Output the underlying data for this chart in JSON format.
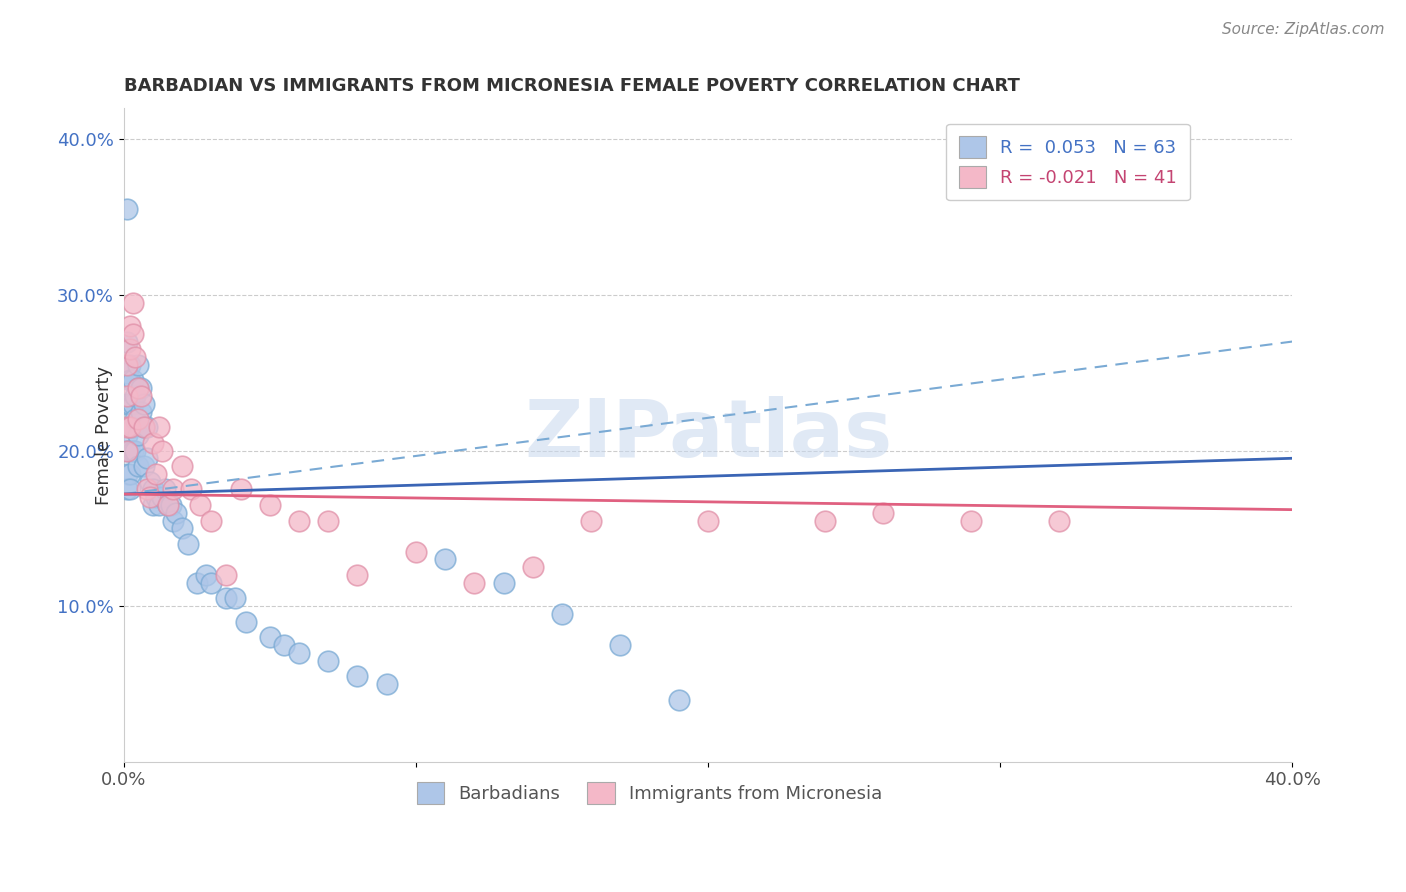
{
  "title": "BARBADIAN VS IMMIGRANTS FROM MICRONESIA FEMALE POVERTY CORRELATION CHART",
  "source": "Source: ZipAtlas.com",
  "ylabel": "Female Poverty",
  "xlim": [
    0.0,
    0.4
  ],
  "ylim": [
    0.0,
    0.42
  ],
  "blue_color": "#aec6e8",
  "pink_color": "#f4b8c8",
  "line_blue_solid_start": 0.172,
  "line_blue_solid_end": 0.195,
  "line_blue_dashed_start": 0.172,
  "line_blue_dashed_end": 0.27,
  "line_pink_start": 0.172,
  "line_pink_end": 0.162,
  "blue_scatter_x": [
    0.001,
    0.001,
    0.001,
    0.001,
    0.001,
    0.001,
    0.001,
    0.001,
    0.002,
    0.002,
    0.002,
    0.002,
    0.002,
    0.002,
    0.002,
    0.003,
    0.003,
    0.003,
    0.003,
    0.004,
    0.004,
    0.004,
    0.005,
    0.005,
    0.005,
    0.005,
    0.006,
    0.006,
    0.007,
    0.007,
    0.007,
    0.008,
    0.008,
    0.009,
    0.01,
    0.01,
    0.011,
    0.012,
    0.013,
    0.014,
    0.015,
    0.016,
    0.017,
    0.018,
    0.02,
    0.022,
    0.025,
    0.028,
    0.03,
    0.035,
    0.038,
    0.042,
    0.05,
    0.055,
    0.06,
    0.07,
    0.08,
    0.09,
    0.11,
    0.13,
    0.15,
    0.17,
    0.19
  ],
  "blue_scatter_y": [
    0.355,
    0.27,
    0.25,
    0.23,
    0.21,
    0.2,
    0.185,
    0.175,
    0.255,
    0.245,
    0.23,
    0.215,
    0.2,
    0.185,
    0.175,
    0.245,
    0.23,
    0.215,
    0.2,
    0.235,
    0.22,
    0.2,
    0.255,
    0.24,
    0.21,
    0.19,
    0.24,
    0.225,
    0.23,
    0.215,
    0.19,
    0.215,
    0.195,
    0.18,
    0.175,
    0.165,
    0.17,
    0.165,
    0.17,
    0.175,
    0.165,
    0.165,
    0.155,
    0.16,
    0.15,
    0.14,
    0.115,
    0.12,
    0.115,
    0.105,
    0.105,
    0.09,
    0.08,
    0.075,
    0.07,
    0.065,
    0.055,
    0.05,
    0.13,
    0.115,
    0.095,
    0.075,
    0.04
  ],
  "pink_scatter_x": [
    0.001,
    0.001,
    0.001,
    0.001,
    0.002,
    0.002,
    0.002,
    0.003,
    0.003,
    0.004,
    0.005,
    0.005,
    0.006,
    0.007,
    0.008,
    0.009,
    0.01,
    0.011,
    0.012,
    0.013,
    0.015,
    0.017,
    0.02,
    0.023,
    0.026,
    0.03,
    0.035,
    0.04,
    0.05,
    0.06,
    0.07,
    0.08,
    0.1,
    0.12,
    0.14,
    0.16,
    0.2,
    0.24,
    0.26,
    0.29,
    0.32
  ],
  "pink_scatter_y": [
    0.255,
    0.235,
    0.215,
    0.2,
    0.28,
    0.265,
    0.215,
    0.295,
    0.275,
    0.26,
    0.24,
    0.22,
    0.235,
    0.215,
    0.175,
    0.17,
    0.205,
    0.185,
    0.215,
    0.2,
    0.165,
    0.175,
    0.19,
    0.175,
    0.165,
    0.155,
    0.12,
    0.175,
    0.165,
    0.155,
    0.155,
    0.12,
    0.135,
    0.115,
    0.125,
    0.155,
    0.155,
    0.155,
    0.16,
    0.155,
    0.155
  ]
}
